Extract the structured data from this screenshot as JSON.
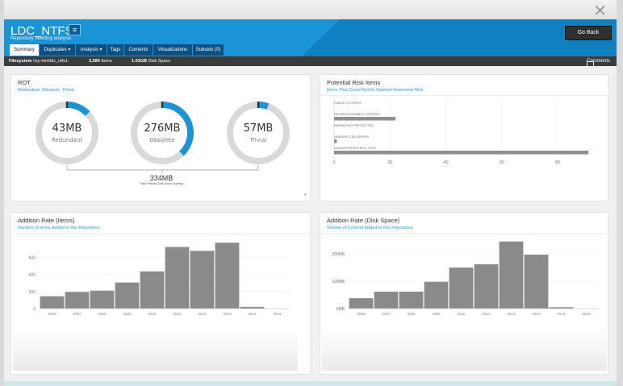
{
  "window": {
    "close_glyph": "✕"
  },
  "header": {
    "title": "LDC_NTFS1",
    "menu_glyph": "≡",
    "subtitle": "Repository needing analysis",
    "go_back": "Go Back",
    "tabs": [
      "Summary",
      "Duplicates ▾",
      "Analysis ▾",
      "Tags",
      "Contents",
      "Visualizations",
      "Subsets (0)"
    ],
    "active_tab": "Summary"
  },
  "infobar": {
    "filesystem_label": "Filesystem",
    "filesystem_path": "\\\\xy-trim\\ldc_ntfs1",
    "items_count": "3,586",
    "items_label": "Items",
    "disk_value": "1.03GB",
    "disk_label": "Disk Space",
    "comments": "Comments"
  },
  "rot": {
    "title": "ROT",
    "subtitle": "Redundant, Obsolete, Trivial",
    "donuts": [
      {
        "value": "43MB",
        "label": "Redundant",
        "fraction": 0.13
      },
      {
        "value": "276MB",
        "label": "Obsolete",
        "fraction": 0.38
      },
      {
        "value": "57MB",
        "label": "Trivial",
        "fraction": 0.055
      }
    ],
    "total_value": "334MB",
    "total_label": "Total Potential Disk Space Savings",
    "colors": {
      "accent": "#1a94d6",
      "track": "#d9d9d9",
      "mark": "#333333"
    }
  },
  "risk": {
    "title": "Potential Risk Items",
    "subtitle": "Items That Could Not be Opened Represent Risk",
    "chart_data": {
      "type": "bar",
      "orientation": "horizontal",
      "categories": [
        "FAILED TO OPEN",
        "NO RECOVERABLE CONTENT",
        "PASSWORD PROTECTED",
        "UNEXPECTED ERROR",
        "UNSUPPORTED FILE TYPE"
      ],
      "values": [
        0,
        22,
        0,
        1,
        91
      ],
      "xticks": [
        0,
        20,
        40,
        60,
        80
      ],
      "xlim": [
        0,
        95
      ]
    }
  },
  "items_rate": {
    "title": "Addition Rate (Items)",
    "subtitle": "Number of Items Added to this Repository",
    "chart_data": {
      "type": "bar",
      "categories": [
        "2006",
        "2007",
        "2008",
        "2009",
        "2010",
        "2011",
        "2012",
        "2013",
        "2014",
        "2015"
      ],
      "values": [
        145,
        195,
        210,
        305,
        435,
        720,
        675,
        770,
        20,
        0
      ],
      "yticks": [
        0,
        200,
        400,
        600
      ],
      "ylim": [
        0,
        800
      ]
    }
  },
  "disk_rate": {
    "title": "Addition Rate (Disk Space)",
    "subtitle": "Volume of Content Added to this Repository",
    "chart_data": {
      "type": "bar",
      "categories": [
        "2006",
        "2007",
        "2008",
        "2009",
        "2010",
        "2011",
        "2012",
        "2013",
        "2014",
        "2015"
      ],
      "values": [
        38,
        62,
        62,
        98,
        150,
        162,
        245,
        197,
        5,
        0
      ],
      "value_unit": "MB",
      "yticks": [
        "0MB",
        "100MB",
        "200MB"
      ],
      "ytick_values": [
        0,
        100,
        200
      ],
      "ylim": [
        0,
        250
      ]
    }
  }
}
